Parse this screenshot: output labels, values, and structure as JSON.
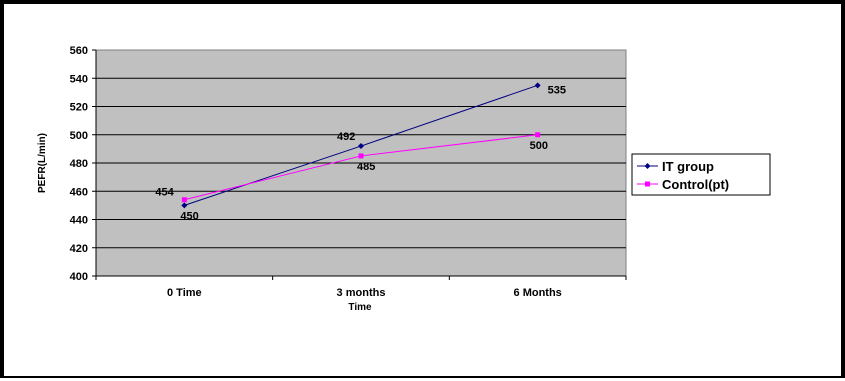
{
  "chart_data": {
    "type": "line",
    "title": "",
    "xlabel": "Time",
    "ylabel": "PEFR(L/min)",
    "categories": [
      "0 Time",
      "3 months",
      "6 Months"
    ],
    "ylim": [
      400,
      560
    ],
    "yticks": [
      "400",
      "420",
      "440",
      "460",
      "480",
      "500",
      "520",
      "540",
      "560"
    ],
    "ytick_values": [
      400,
      420,
      440,
      460,
      480,
      500,
      520,
      540,
      560
    ],
    "grid": "horizontal",
    "plot_background": "#c0c0c0",
    "legend_position": "right",
    "series": [
      {
        "name": "IT group",
        "values": [
          450,
          492,
          535
        ],
        "labels": [
          "450",
          "492",
          "535"
        ],
        "color": "#000080",
        "marker": "diamond"
      },
      {
        "name": "Control(pt)",
        "values": [
          454,
          485,
          500
        ],
        "labels": [
          "454",
          "485",
          "500"
        ],
        "color": "#ff00ff",
        "marker": "square"
      }
    ]
  }
}
